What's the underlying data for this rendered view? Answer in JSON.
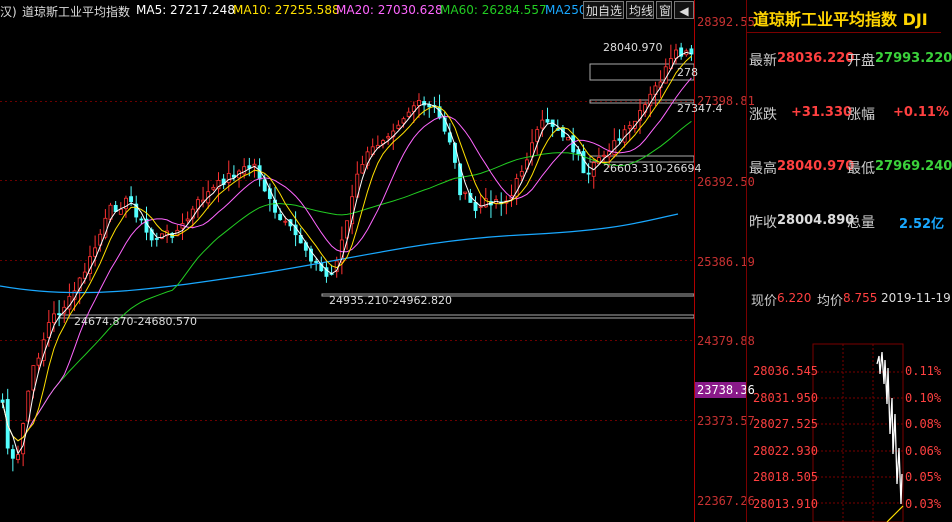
{
  "header": {
    "title_prefix": "汉)",
    "index_name": "道琼斯工业平均指数",
    "ma5": "MA5: 27217.248",
    "ma10": "MA10: 27255.588",
    "ma20": "MA20: 27030.628",
    "ma60": "MA60: 26284.557",
    "ma250": "MA250",
    "btn_add": "加自选",
    "btn_line": "均线",
    "btn_window": "窗",
    "btn_left": "◀",
    "colors": {
      "ma5": "#ffffff",
      "ma10": "#ffe000",
      "ma20": "#ff66ff",
      "ma60": "#00cc00",
      "ma250": "#00aaff"
    }
  },
  "axis": {
    "labels": [
      "28392.55",
      "27398.81",
      "26392.50",
      "25386.19",
      "24379.88",
      "23373.57",
      "22367.26"
    ],
    "current_price_tag": "23738.36"
  },
  "annotations": {
    "high": "28040.970",
    "high_right": "278",
    "box_right": "27347.4",
    "box_mid": "26603.310-26694",
    "box_low": "24935.210-24962.820",
    "box_left": "24674.870-24680.570"
  },
  "quote": {
    "title": "道琼斯工业平均指数 DJI",
    "latest_label": "最新",
    "latest_value": "28036.220",
    "open_label": "开盘",
    "open_value": "27993.220",
    "change_label": "涨跌",
    "change_value": "+31.330",
    "change_pct_label": "涨幅",
    "change_pct_value": "+0.11%",
    "high_label": "最高",
    "high_value": "28040.970",
    "low_label": "最低",
    "low_value": "27969.240",
    "prev_label": "昨收",
    "prev_value": "28004.890",
    "vol_label": "总量",
    "vol_value": "2.52亿"
  },
  "mini": {
    "now_label": "现价",
    "now_value": "6.220",
    "avg_label": "均价",
    "avg_value": "8.755",
    "date": "2019-11-19",
    "price_labels": [
      "28036.545",
      "28031.950",
      "28027.525",
      "28022.930",
      "28018.505",
      "28013.910"
    ],
    "pct_labels": [
      "0.11%",
      "0.10%",
      "0.08%",
      "0.06%",
      "0.05%",
      "0.03%"
    ]
  }
}
